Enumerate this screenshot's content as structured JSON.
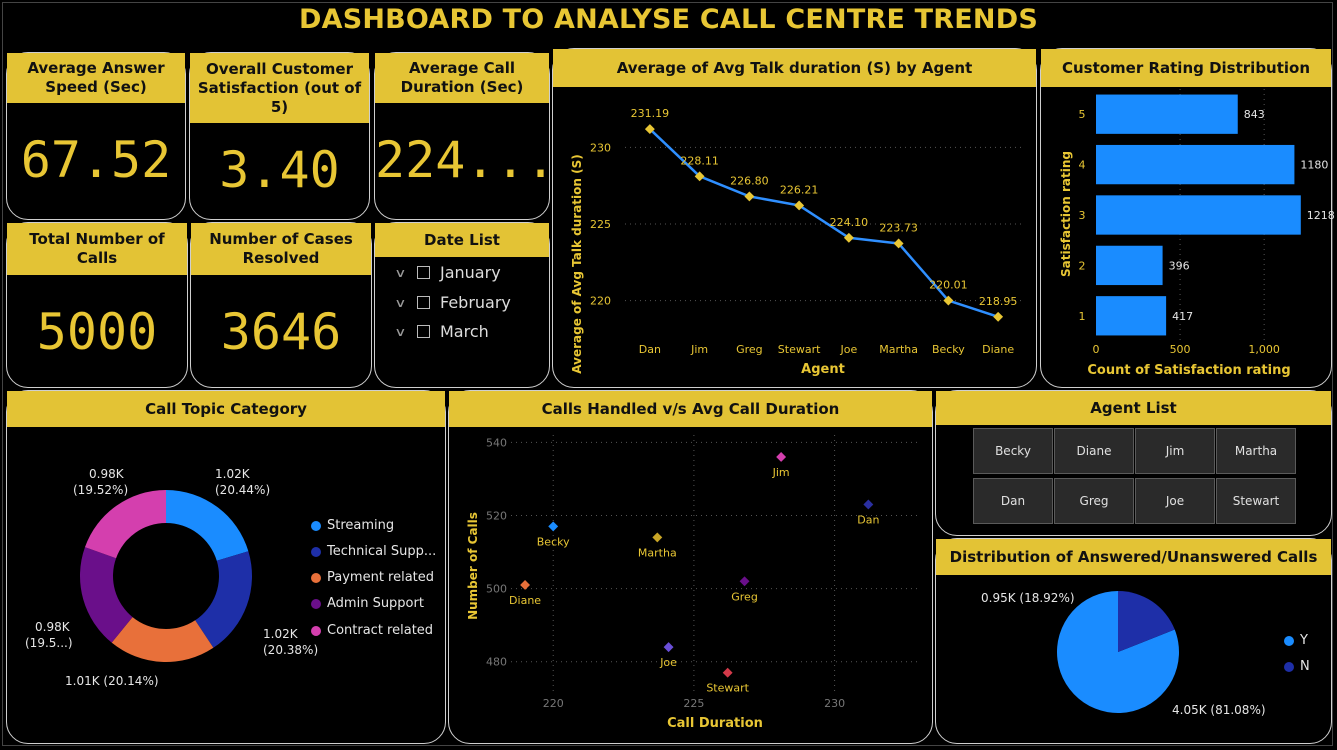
{
  "title": "DASHBOARD TO ANALYSE CALL CENTRE TRENDS",
  "kpis": {
    "avg_answer_speed": {
      "label": "Average Answer Speed (Sec)",
      "value": "67.52"
    },
    "csat": {
      "label": "Overall Customer Satisfaction (out of 5)",
      "value": "3.40"
    },
    "avg_call_duration": {
      "label": "Average Call Duration (Sec)",
      "value": "224...."
    },
    "total_calls": {
      "label": "Total Number of Calls",
      "value": "5000"
    },
    "cases_resolved": {
      "label": "Number of Cases Resolved",
      "value": "3646"
    }
  },
  "date_list": {
    "label": "Date List",
    "items": [
      "January",
      "February",
      "March"
    ]
  },
  "talk_chart": {
    "header": "Average of Avg Talk duration (S) by Agent",
    "xlabel": "Agent",
    "ylabel": "Average of Avg Talk duration (S)",
    "data_labels": [
      "231.19",
      "228.11",
      "226.80",
      "226.21",
      "224.10",
      "223.73",
      "220.01",
      "218.95"
    ],
    "y_ticks": [
      "220",
      "225",
      "230"
    ]
  },
  "rating_chart": {
    "header": "Customer Rating Distribution",
    "xlabel": "Count of Satisfaction rating",
    "ylabel": "Satisfaction rating",
    "categories": [
      "5",
      "4",
      "3",
      "2",
      "1"
    ],
    "data_labels": [
      "843",
      "1180",
      "1218",
      "396",
      "417"
    ],
    "x_ticks": [
      "0",
      "500",
      "1,000"
    ]
  },
  "topic_chart": {
    "header": "Call Topic Category",
    "labels": [
      "1.02K",
      "(20.44%)",
      "1.02K",
      "(20.38%)",
      "1.01K (20.14%)",
      "0.98K",
      "(19.5...)",
      "0.98K",
      "(19.52%)"
    ],
    "legend": [
      "Streaming",
      "Technical Supp...",
      "Payment related",
      "Admin Support",
      "Contract related"
    ]
  },
  "scatter_chart": {
    "header": "Calls Handled v/s Avg Call Duration",
    "xlabel": "Call Duration",
    "ylabel": "Number of Calls",
    "x_ticks": [
      "220",
      "225",
      "230"
    ],
    "y_ticks": [
      "480",
      "500",
      "520",
      "540"
    ],
    "point_labels": [
      "Jim",
      "Dan",
      "Becky",
      "Martha",
      "Diane",
      "Greg",
      "Joe",
      "Stewart"
    ]
  },
  "agent_list": {
    "header": "Agent List",
    "agents": [
      "Becky",
      "Diane",
      "Jim",
      "Martha",
      "Dan",
      "Greg",
      "Joe",
      "Stewart"
    ]
  },
  "answered_chart": {
    "header": "Distribution of Answered/Unanswered Calls",
    "labels": [
      "0.95K (18.92%)",
      "4.05K (81.08%)"
    ],
    "legend": [
      "Y",
      "N"
    ]
  },
  "colors": {
    "accent": "#e3c335",
    "line": "#2f8fff",
    "bar": "#1a8cff",
    "streaming": "#1a8cff",
    "technical": "#1e2fa8",
    "payment": "#e8703a",
    "admin": "#6a0f8a",
    "contract": "#d43fae"
  },
  "chart_data": [
    {
      "type": "line",
      "title": "Average of Avg Talk duration (S) by Agent",
      "xlabel": "Agent",
      "ylabel": "Average of Avg Talk duration (S)",
      "categories": [
        "Dan",
        "Jim",
        "Greg",
        "Stewart",
        "Joe",
        "Martha",
        "Becky",
        "Diane"
      ],
      "values": [
        231.19,
        228.11,
        226.8,
        226.21,
        224.1,
        223.73,
        220.01,
        218.95
      ],
      "ylim": [
        217.5,
        232.5
      ]
    },
    {
      "type": "bar",
      "orientation": "horizontal",
      "title": "Customer Rating Distribution",
      "xlabel": "Count of Satisfaction rating",
      "ylabel": "Satisfaction rating",
      "categories": [
        "5",
        "4",
        "3",
        "2",
        "1"
      ],
      "values": [
        843,
        1180,
        1218,
        396,
        417
      ],
      "xlim": [
        0,
        1350
      ]
    },
    {
      "type": "pie",
      "donut": true,
      "title": "Call Topic Category",
      "categories": [
        "Streaming",
        "Technical Supp...",
        "Payment related",
        "Admin Support",
        "Contract related"
      ],
      "values": [
        1020,
        1020,
        1010,
        980,
        980
      ],
      "percents": [
        20.44,
        20.38,
        20.14,
        19.52,
        19.52
      ]
    },
    {
      "type": "scatter",
      "title": "Calls Handled v/s Avg Call Duration",
      "xlabel": "Call Duration",
      "ylabel": "Number of Calls",
      "points": [
        {
          "label": "Jim",
          "x": 228.1,
          "y": 536,
          "color": "#d43fae"
        },
        {
          "label": "Dan",
          "x": 231.2,
          "y": 523,
          "color": "#2a2fa0"
        },
        {
          "label": "Becky",
          "x": 220.0,
          "y": 517,
          "color": "#1a8cff"
        },
        {
          "label": "Martha",
          "x": 223.7,
          "y": 514,
          "color": "#c9a526"
        },
        {
          "label": "Diane",
          "x": 219.0,
          "y": 501,
          "color": "#e8703a"
        },
        {
          "label": "Greg",
          "x": 226.8,
          "y": 502,
          "color": "#6a0f8a"
        },
        {
          "label": "Joe",
          "x": 224.1,
          "y": 484,
          "color": "#6a4fd8"
        },
        {
          "label": "Stewart",
          "x": 226.2,
          "y": 477,
          "color": "#d43a4a"
        }
      ],
      "xlim": [
        218.5,
        233
      ],
      "ylim": [
        472,
        542
      ]
    },
    {
      "type": "pie",
      "title": "Distribution of Answered/Unanswered Calls",
      "categories": [
        "Y",
        "N"
      ],
      "values": [
        4050,
        950
      ],
      "percents": [
        81.08,
        18.92
      ],
      "colors": [
        "#1a8cff",
        "#1e2fa8"
      ]
    }
  ]
}
